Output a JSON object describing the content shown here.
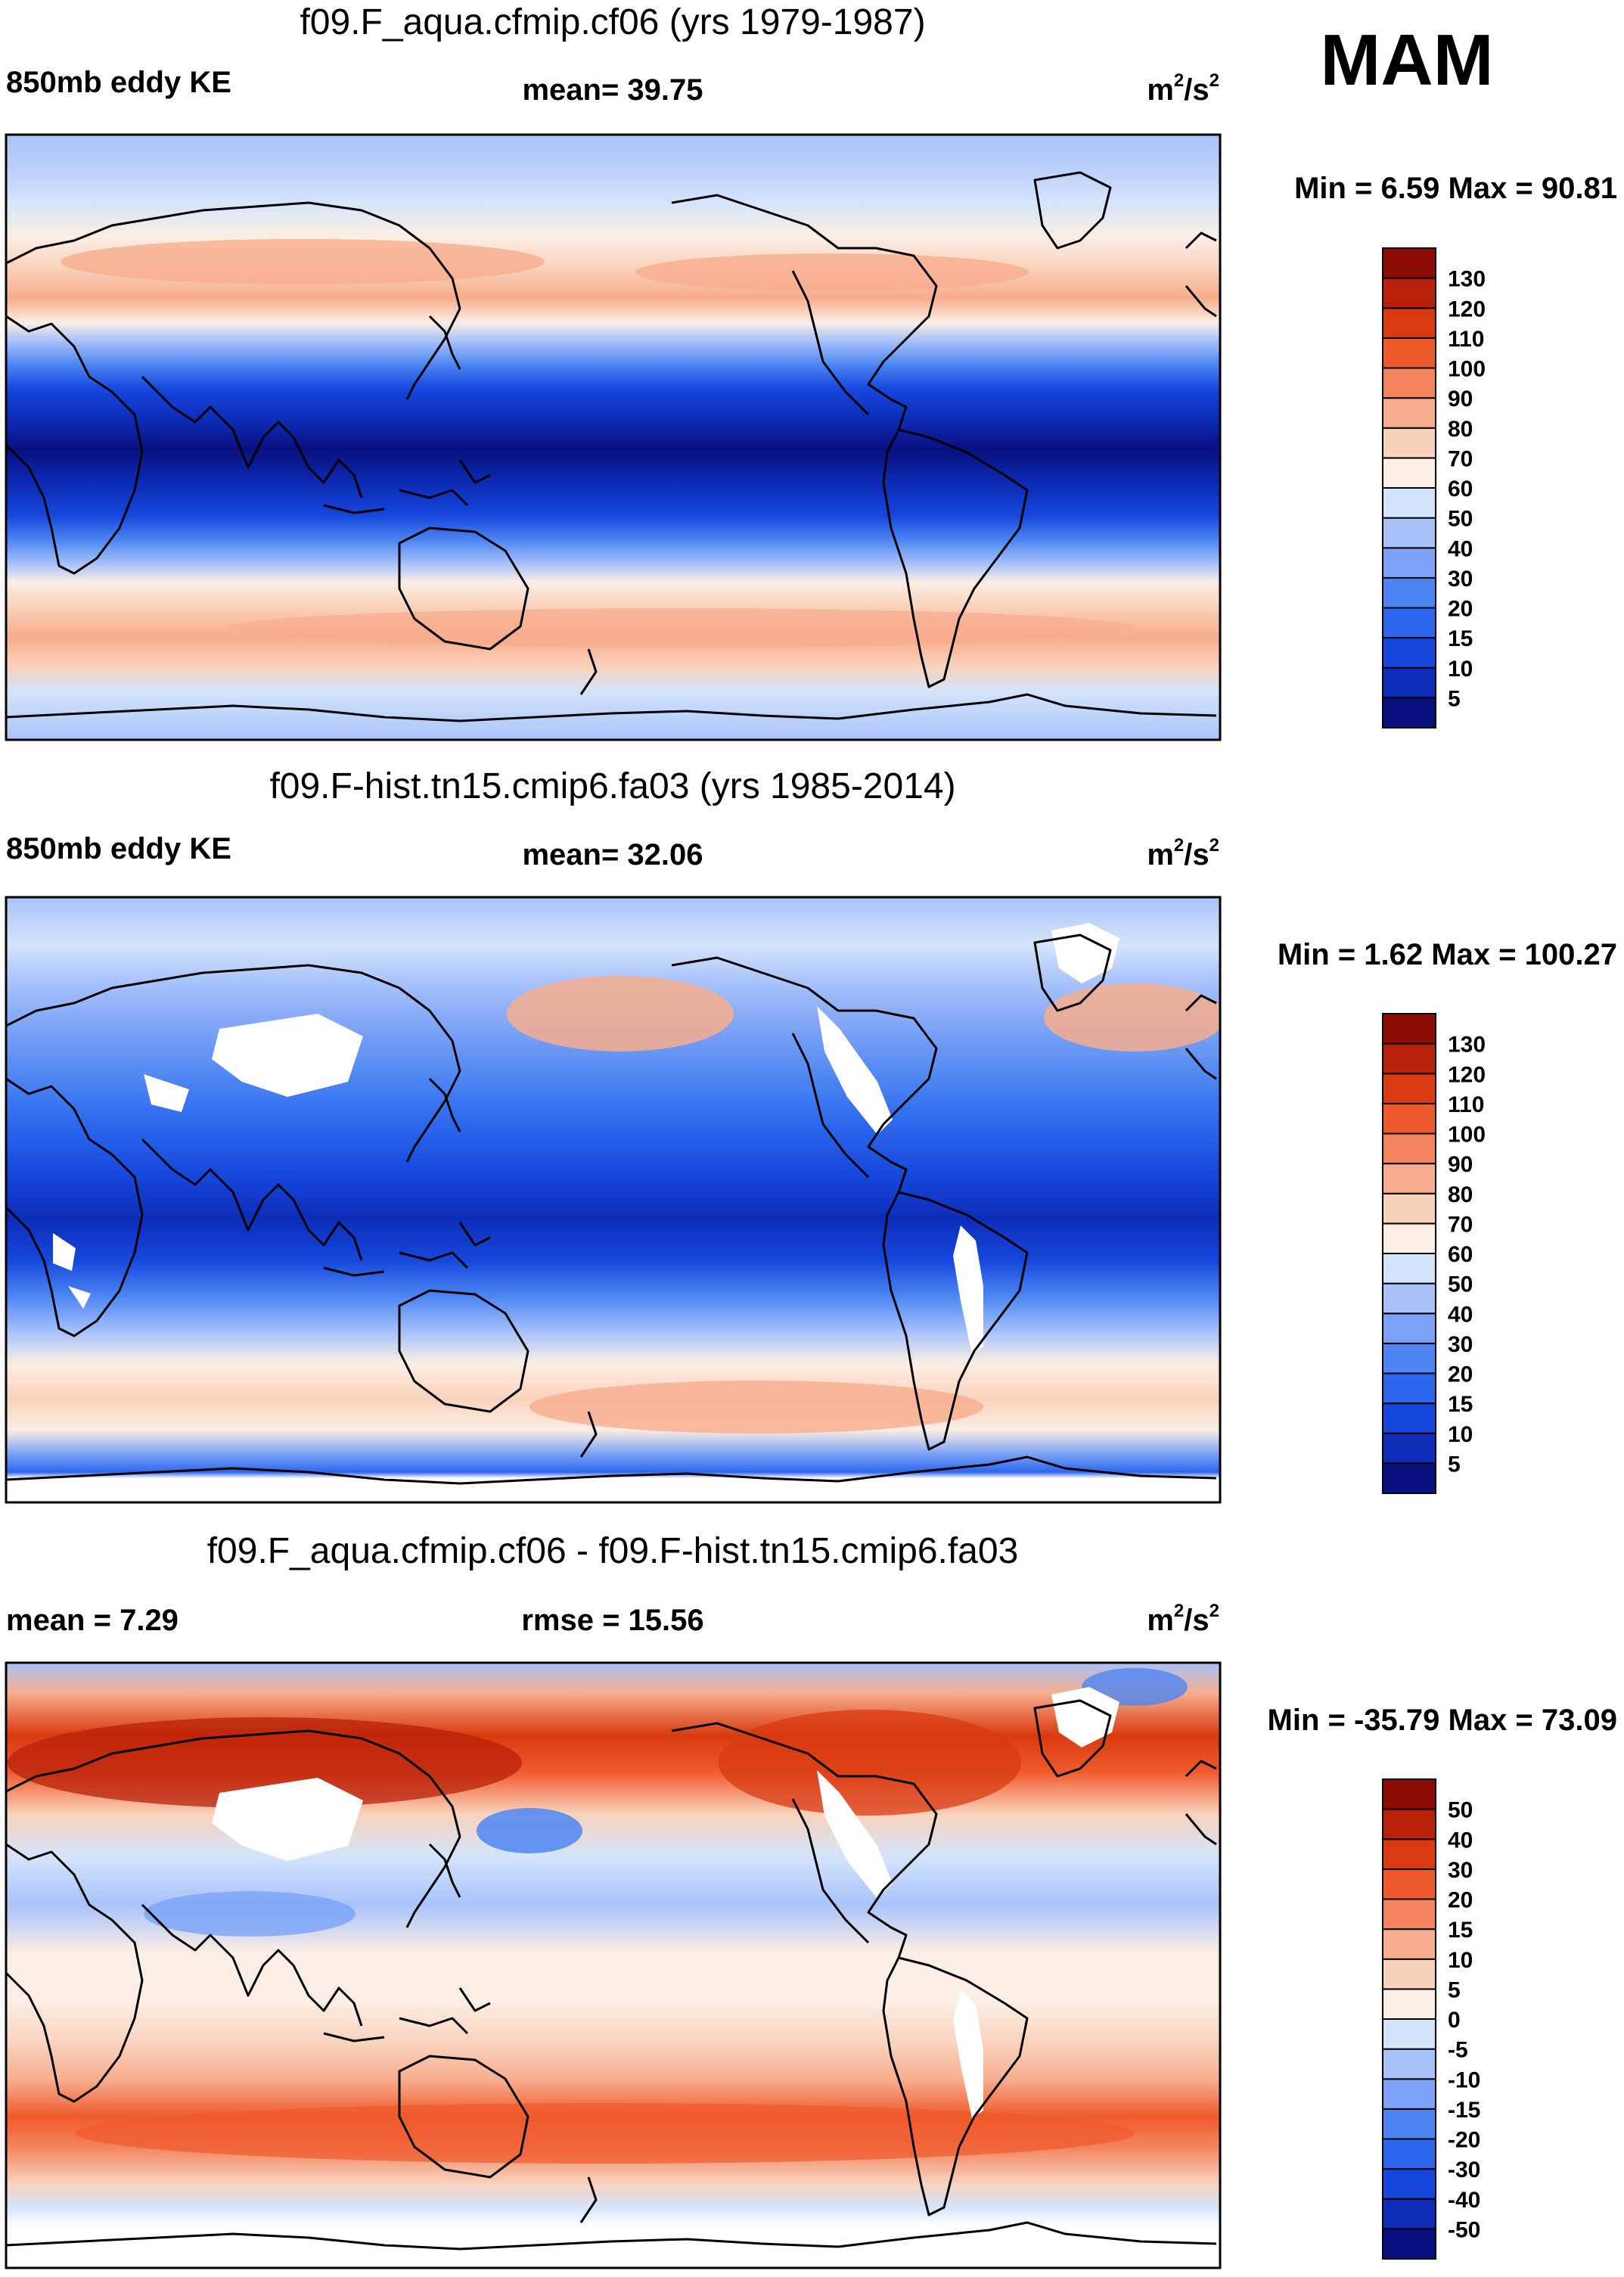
{
  "season": "MAM",
  "chart_data": [
    {
      "type": "heatmap",
      "title": "f09.F_aqua.cfmip.cf06 (yrs 1979-1987)",
      "left_label": "850mb eddy KE",
      "center_label": "mean=  39.75",
      "units_base": "m",
      "units_sup1": "2",
      "units_mid": "/s",
      "units_sup2": "2",
      "minmax": "Min =   6.59 Max =  90.81",
      "colorbar": {
        "labels": [
          "5",
          "10",
          "15",
          "20",
          "30",
          "40",
          "50",
          "60",
          "70",
          "80",
          "90",
          "100",
          "110",
          "120",
          "130"
        ],
        "colors": [
          "#08107f",
          "#0d2db8",
          "#1647dc",
          "#2b66ec",
          "#4d86f3",
          "#7ba2f6",
          "#a9c3fa",
          "#d4e4fb",
          "#fbeee4",
          "#f9d2bc",
          "#f7ad8d",
          "#f3845e",
          "#ef5a2c",
          "#d93a10",
          "#b8200a",
          "#8c0d04"
        ]
      },
      "map_description": "zonal bands: high-latitude light blue, mid-latitude storm tracks pale red, tropics deep blue; continent outlines"
    },
    {
      "type": "heatmap",
      "title": "f09.F-hist.tn15.cmip6.fa03 (yrs 1985-2014)",
      "left_label": "850mb eddy KE",
      "center_label": "mean=  32.06",
      "units_base": "m",
      "units_sup1": "2",
      "units_mid": "/s",
      "units_sup2": "2",
      "minmax": "Min =   1.62 Max = 100.27",
      "colorbar": {
        "labels": [
          "5",
          "10",
          "15",
          "20",
          "30",
          "40",
          "50",
          "60",
          "70",
          "80",
          "90",
          "100",
          "110",
          "120",
          "130"
        ],
        "colors": [
          "#08107f",
          "#0d2db8",
          "#1647dc",
          "#2b66ec",
          "#4d86f3",
          "#7ba2f6",
          "#a9c3fa",
          "#d4e4fb",
          "#fbeee4",
          "#f9d2bc",
          "#f7ad8d",
          "#f3845e",
          "#ef5a2c",
          "#d93a10",
          "#b8200a",
          "#8c0d04"
        ]
      },
      "map_description": "land mostly blue, storm tracks over oceans pale red, white missing-data masks over high topography (Tibet, Andes, Rockies, Greenland, Antarctica)"
    },
    {
      "type": "heatmap",
      "title": "f09.F_aqua.cfmip.cf06 - f09.F-hist.tn15.cmip6.fa03",
      "left_label": "mean =   7.29",
      "center_label": "rmse =  15.56",
      "units_base": "m",
      "units_sup1": "2",
      "units_mid": "/s",
      "units_sup2": "2",
      "minmax": "Min = -35.79 Max =  73.09",
      "colorbar": {
        "labels": [
          "-50",
          "-40",
          "-30",
          "-20",
          "-15",
          "-10",
          "-5",
          "0",
          "5",
          "10",
          "15",
          "20",
          "30",
          "40",
          "50"
        ],
        "colors": [
          "#08107f",
          "#0d2db8",
          "#1647dc",
          "#2b66ec",
          "#4d86f3",
          "#7ba2f6",
          "#a9c3fa",
          "#d4e4fb",
          "#fbeee4",
          "#f9d2bc",
          "#f7ad8d",
          "#f3845e",
          "#ef5a2c",
          "#d93a10",
          "#b8200a",
          "#8c0d04"
        ]
      },
      "map_description": "difference field: strong red over northern hemisphere land and southern ocean storm track, blue patches in tropics and north Pacific, white masks over topography"
    }
  ]
}
